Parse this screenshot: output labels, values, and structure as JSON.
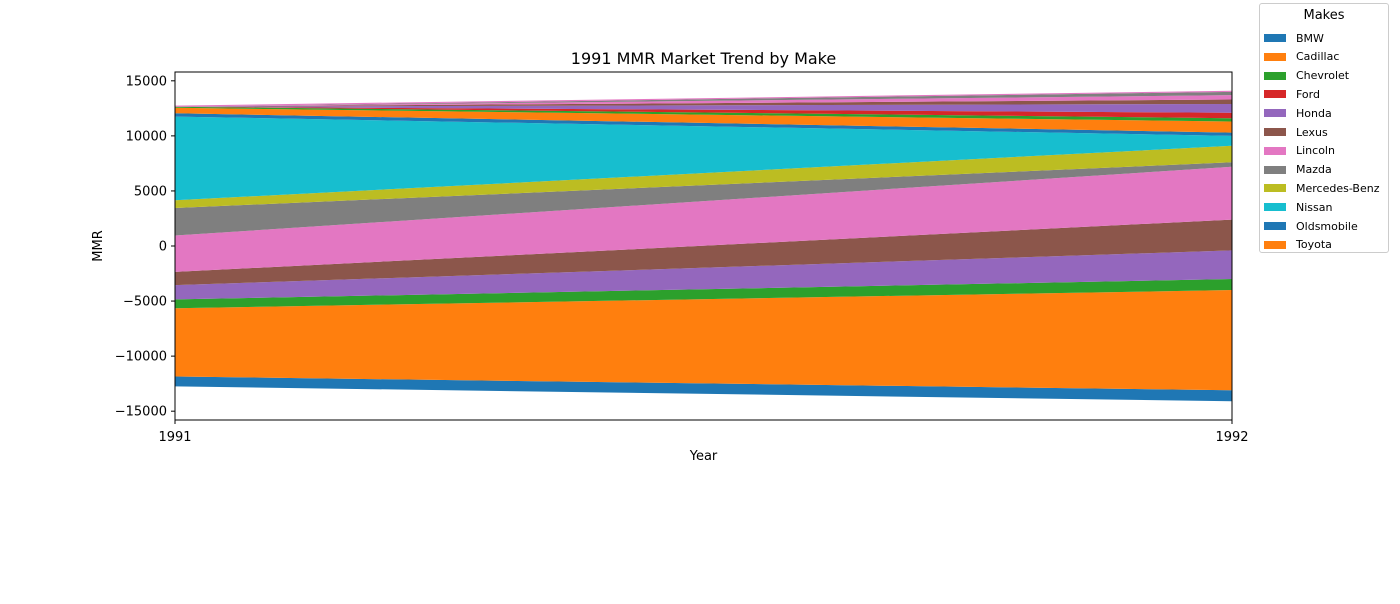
{
  "chart_data": {
    "type": "area",
    "title": "1991 MMR Market Trend by Make",
    "xlabel": "Year",
    "ylabel": "MMR",
    "x": [
      "1991",
      "1992"
    ],
    "xlim": [
      1991,
      1992
    ],
    "ylim": [
      -15800,
      15800
    ],
    "yticks": [
      -15000,
      -10000,
      -5000,
      0,
      5000,
      10000,
      15000
    ],
    "yticklabels": [
      "−15000",
      "−10000",
      "−5000",
      "0",
      "5000",
      "10000",
      "15000"
    ],
    "baseline": "symmetric",
    "grid": false,
    "legend": {
      "title": "Makes",
      "placement": "outside-top-right"
    },
    "series": [
      {
        "name": "BMW",
        "color": "#1f77b4",
        "values": [
          900,
          1000
        ]
      },
      {
        "name": "Cadillac",
        "color": "#ff7f0e",
        "values": [
          6200,
          9100
        ]
      },
      {
        "name": "Chevrolet",
        "color": "#2ca02c",
        "values": [
          800,
          1000
        ]
      },
      {
        "name": "Ford",
        "color": "#d62728",
        "values": [
          0,
          0
        ]
      },
      {
        "name": "Honda",
        "color": "#9467bd",
        "values": [
          1300,
          2600
        ]
      },
      {
        "name": "Lexus",
        "color": "#8c564b",
        "values": [
          1200,
          2800
        ]
      },
      {
        "name": "Lincoln",
        "color": "#e377c2",
        "values": [
          3300,
          4800
        ]
      },
      {
        "name": "Mazda",
        "color": "#7f7f7f",
        "values": [
          2500,
          400
        ]
      },
      {
        "name": "Mercedes-Benz",
        "color": "#bcbd22",
        "values": [
          700,
          1500
        ]
      },
      {
        "name": "Nissan",
        "color": "#17becf",
        "values": [
          7600,
          900
        ]
      },
      {
        "name": "Oldsmobile",
        "color": "#1f77b4",
        "values": [
          300,
          300
        ]
      },
      {
        "name": "Toyota",
        "color": "#ff7f0e",
        "values": [
          500,
          1000
        ]
      },
      {
        "name": "",
        "color": "#2ca02c",
        "values": [
          100,
          300
        ]
      },
      {
        "name": "",
        "color": "#d62728",
        "values": [
          0,
          500
        ]
      },
      {
        "name": "",
        "color": "#9467bd",
        "values": [
          0,
          800
        ]
      },
      {
        "name": "",
        "color": "#8c564b",
        "values": [
          0,
          400
        ]
      },
      {
        "name": "",
        "color": "#e377c2",
        "values": [
          0,
          400
        ]
      },
      {
        "name": "",
        "color": "#7f7f7f",
        "values": [
          0,
          300
        ]
      },
      {
        "name": "",
        "color": "#e377c2",
        "values": [
          100,
          100
        ]
      }
    ]
  }
}
